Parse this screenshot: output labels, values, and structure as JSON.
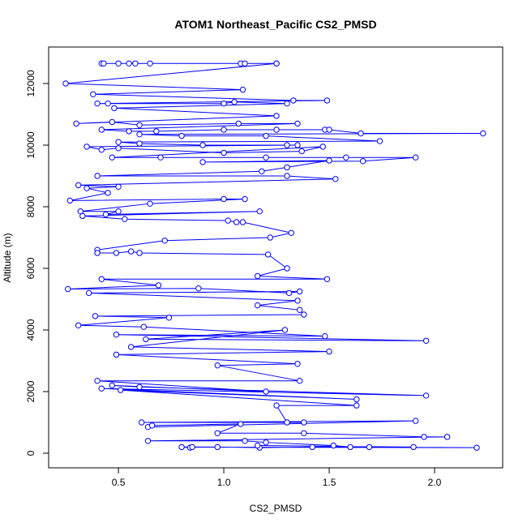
{
  "chart_data": {
    "type": "scatter-line",
    "title": "ATOM1 Northeast_Pacific CS2_PMSD",
    "x_label": "CS2_PMSD",
    "y_label": "Altitude (m)",
    "color": "#0000ff",
    "x": [
      0.42,
      0.43,
      0.5,
      0.55,
      0.58,
      0.65,
      1.08,
      1.1,
      1.25,
      1.25,
      0.25,
      1.09,
      0.38,
      1.33,
      1.49,
      0.4,
      0.45,
      1.0,
      1.05,
      1.3,
      0.48,
      1.25,
      0.3,
      0.47,
      0.6,
      1.07,
      1.35,
      0.42,
      0.55,
      0.68,
      1.0,
      1.25,
      1.48,
      1.5,
      1.65,
      2.23,
      0.6,
      0.8,
      1.2,
      1.74,
      0.5,
      0.6,
      0.9,
      1.3,
      1.35,
      0.35,
      0.42,
      0.5,
      1.0,
      1.37,
      1.47,
      0.47,
      0.7,
      1.2,
      1.58,
      1.91,
      1.66,
      0.9,
      1.5,
      1.3,
      1.18,
      0.4,
      1.3,
      1.53,
      0.31,
      0.5,
      0.35,
      0.45,
      0.27,
      1.0,
      1.1,
      0.65,
      0.32,
      0.5,
      0.44,
      1.17,
      0.33,
      0.53,
      1.02,
      1.06,
      1.09,
      1.32,
      1.22,
      0.72,
      0.4,
      0.4,
      0.49,
      0.56,
      0.6,
      1.21,
      1.3,
      1.16,
      1.49,
      0.42,
      0.69,
      0.26,
      0.88,
      1.31,
      1.36,
      0.36,
      1.35,
      1.16,
      1.36,
      1.38,
      0.39,
      0.74,
      0.31,
      0.62,
      1.48,
      0.49,
      1.96,
      0.63,
      1.29,
      0.56,
      1.5,
      0.49,
      1.35,
      0.97,
      1.36,
      0.4,
      1.2,
      0.47,
      0.6,
      1.96,
      0.42,
      1.63,
      0.51,
      1.63,
      1.25,
      1.3,
      1.38,
      0.61,
      1.91,
      0.64,
      0.66,
      1.08,
      0.97,
      1.38,
      1.95,
      2.06,
      0.64,
      1.1,
      1.2,
      1.52,
      1.6,
      2.2,
      0.8,
      0.84,
      0.85,
      0.97,
      1.17,
      1.42,
      1.69,
      1.9,
      1.16
    ],
    "values": [
      12650,
      12650,
      12650,
      12650,
      12650,
      12650,
      12650,
      12650,
      12650,
      12650,
      12000,
      11800,
      11650,
      11450,
      11450,
      11350,
      11350,
      11350,
      11400,
      11350,
      11200,
      10950,
      10700,
      10750,
      10650,
      10700,
      10700,
      10500,
      10450,
      10450,
      10500,
      10500,
      10500,
      10500,
      10380,
      10380,
      10350,
      10300,
      10300,
      10130,
      10100,
      10050,
      10000,
      10000,
      10000,
      9950,
      9850,
      9900,
      9750,
      9800,
      9950,
      9600,
      9600,
      9600,
      9600,
      9600,
      9480,
      9450,
      9500,
      9280,
      9150,
      9000,
      9000,
      8900,
      8700,
      8650,
      8600,
      8450,
      8200,
      8250,
      8250,
      8100,
      7850,
      7850,
      7750,
      7850,
      7700,
      7600,
      7550,
      7500,
      7500,
      7150,
      7000,
      6900,
      6600,
      6500,
      6500,
      6550,
      6500,
      6450,
      6000,
      5750,
      5650,
      5650,
      5450,
      5330,
      5350,
      5200,
      5250,
      5200,
      4950,
      4800,
      4650,
      4500,
      4450,
      4400,
      4150,
      4100,
      3800,
      3850,
      3650,
      3700,
      4000,
      3450,
      3300,
      3200,
      2900,
      2850,
      2350,
      2350,
      2000,
      2200,
      2150,
      1870,
      2100,
      1750,
      2050,
      1550,
      1550,
      1000,
      1000,
      1000,
      1050,
      850,
      900,
      950,
      650,
      650,
      530,
      530,
      400,
      400,
      350,
      250,
      200,
      180,
      200,
      180,
      200,
      200,
      180,
      200,
      200,
      200,
      250
    ],
    "xlim": [
      0.169,
      2.323
    ],
    "ylim": [
      -474,
      13184
    ],
    "xticks": [
      0.5,
      {
        "value": 1.0,
        "label": "1.0"
      },
      1.5,
      {
        "value": 2.0,
        "label": "2.0"
      }
    ],
    "yticks": [
      0,
      2000,
      4000,
      6000,
      8000,
      10000,
      12000
    ]
  }
}
